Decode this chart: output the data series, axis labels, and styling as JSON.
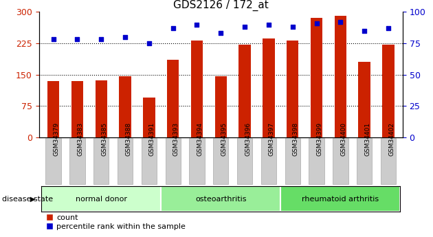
{
  "title": "GDS2126 / 172_at",
  "samples": [
    "GSM34379",
    "GSM34383",
    "GSM34385",
    "GSM34388",
    "GSM34391",
    "GSM34393",
    "GSM34394",
    "GSM34395",
    "GSM34396",
    "GSM34397",
    "GSM34398",
    "GSM34399",
    "GSM34400",
    "GSM34401",
    "GSM34402"
  ],
  "counts": [
    135,
    135,
    137,
    146,
    96,
    186,
    232,
    146,
    221,
    236,
    232,
    286,
    291,
    181,
    222
  ],
  "percentiles": [
    78,
    78,
    78,
    80,
    75,
    87,
    90,
    83,
    88,
    90,
    88,
    91,
    92,
    85,
    87
  ],
  "bar_color": "#cc2200",
  "dot_color": "#0000cc",
  "ylim_left": [
    0,
    300
  ],
  "ylim_right": [
    0,
    100
  ],
  "yticks_left": [
    0,
    75,
    150,
    225,
    300
  ],
  "yticks_right": [
    0,
    25,
    50,
    75,
    100
  ],
  "grid_lines": [
    75,
    150,
    225
  ],
  "groups": [
    {
      "label": "normal donor",
      "start": 0,
      "end": 5,
      "color": "#ccffcc"
    },
    {
      "label": "osteoarthritis",
      "start": 5,
      "end": 10,
      "color": "#99ee99"
    },
    {
      "label": "rheumatoid arthritis",
      "start": 10,
      "end": 15,
      "color": "#66dd66"
    }
  ],
  "disease_state_label": "disease state",
  "legend_count": "count",
  "legend_percentile": "percentile rank within the sample",
  "bar_width": 0.5,
  "tick_label_color_left": "#cc2200",
  "tick_label_color_right": "#0000cc",
  "background_color": "#ffffff",
  "plot_bg_color": "#ffffff",
  "title_fontsize": 11
}
